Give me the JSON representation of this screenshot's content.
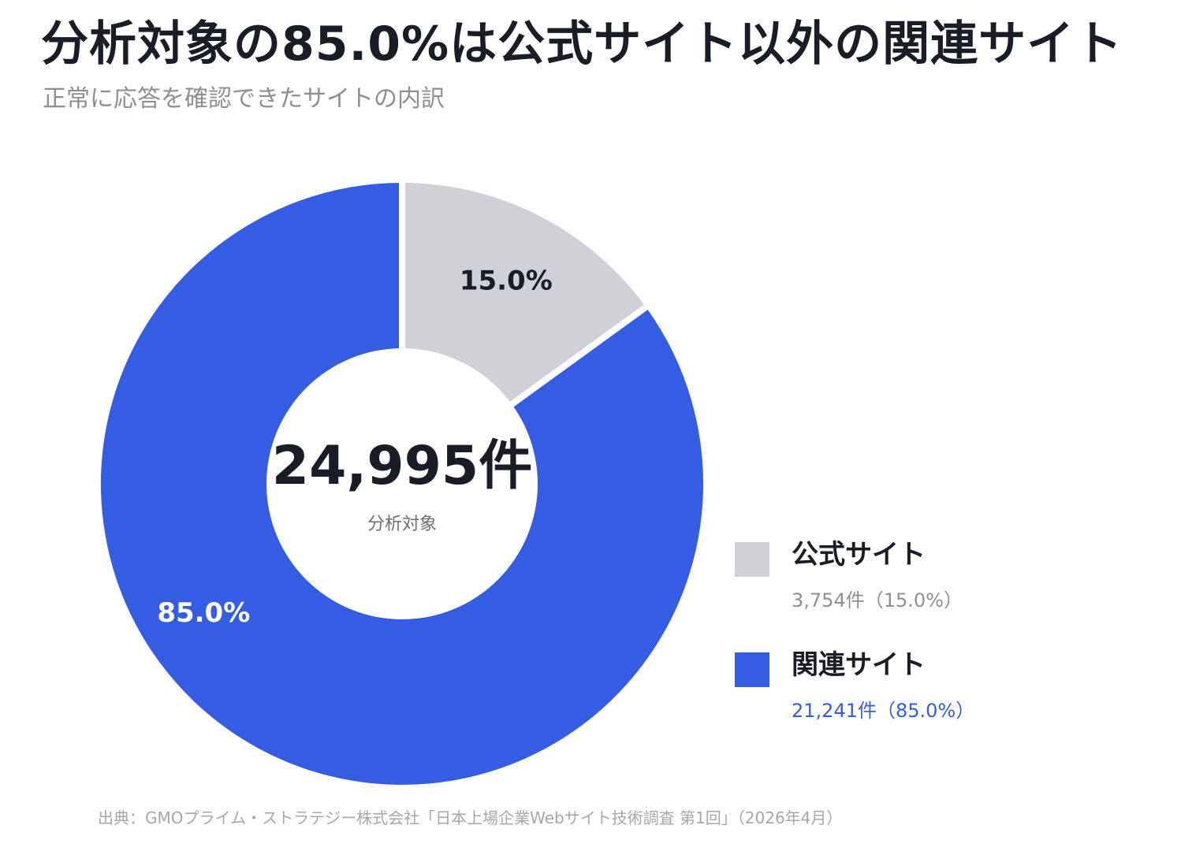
{
  "chart_data": {
    "type": "pie",
    "title": "分析対象の85.0%は公式サイト以外の関連サイト",
    "subtitle": "正常に応答を確認できたサイトの内訳",
    "center": {
      "total": "24,995件",
      "caption": "分析対象"
    },
    "slices": [
      {
        "name": "公式サイト",
        "value": 3754,
        "percent": 15.0,
        "label": "15.0%",
        "detail": "3,754件（15.0%）",
        "color": "#cfd1d6",
        "label_color": "#1a1d26",
        "detail_color": "#8c8f96"
      },
      {
        "name": "関連サイト",
        "value": 21241,
        "percent": 85.0,
        "label": "85.0%",
        "detail": "21,241件（85.0%）",
        "color": "#345de3",
        "label_color": "#ffffff",
        "detail_color": "#345de3"
      }
    ],
    "legend_position": "right",
    "source": "出典：GMOプライム・ストラテジー株式会社「日本上場企業Webサイト技術調査 第1回」（2026年4月）"
  }
}
